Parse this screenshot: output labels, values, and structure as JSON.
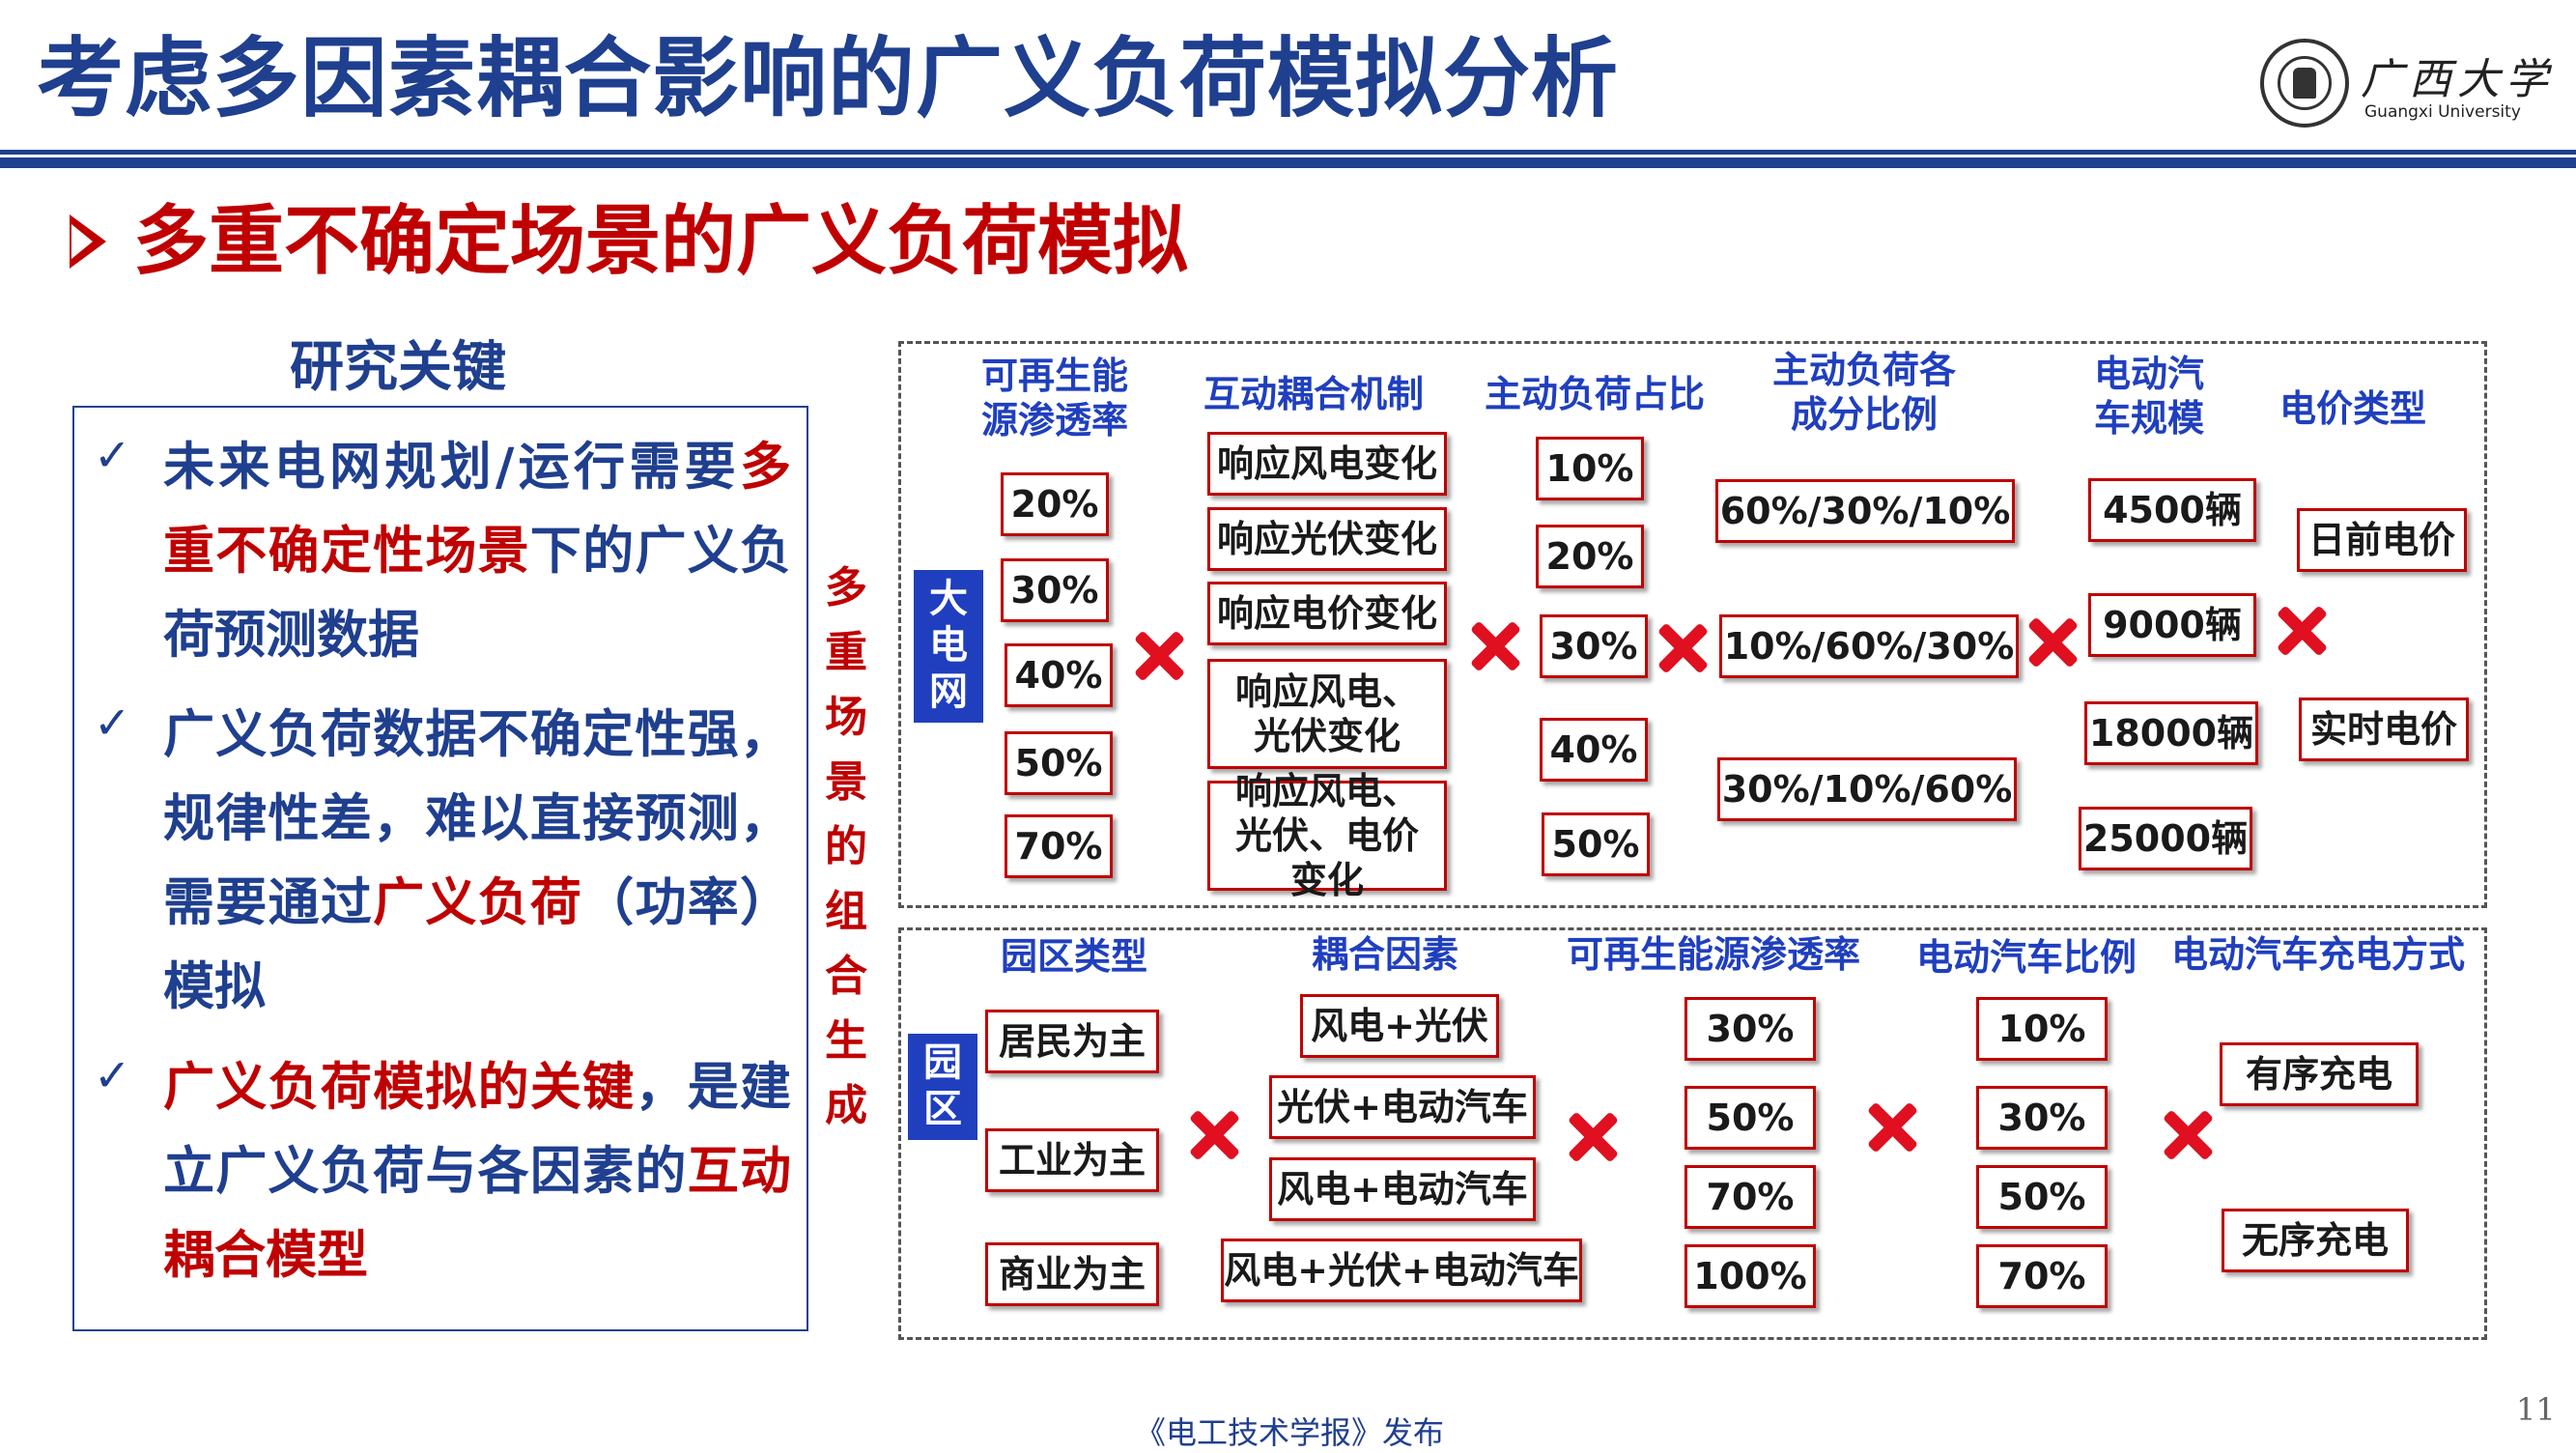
{
  "header": {
    "title": "考虑多因素耦合影响的广义负荷模拟分析",
    "logo_cn": "广西大学",
    "logo_en": "Guangxi University"
  },
  "subtitle": "多重不确定场景的广义负荷模拟",
  "research": {
    "heading": "研究关键",
    "bullets": [
      {
        "segments": [
          {
            "text": "未来电网规划/运行需要",
            "red": false
          },
          {
            "text": "多重不确定性场景",
            "red": true
          },
          {
            "text": "下的广义负荷预测数据",
            "red": false
          }
        ]
      },
      {
        "segments": [
          {
            "text": "广义负荷数据不确定性强，规律性差，难以直接预测，需要通过",
            "red": false
          },
          {
            "text": "广义负荷",
            "red": true
          },
          {
            "text": "（功率）模拟",
            "red": false
          }
        ]
      },
      {
        "segments": [
          {
            "text": "广义负荷模拟的关键",
            "red": true
          },
          {
            "text": "，是建立广义负荷与各因素的",
            "red": false
          },
          {
            "text": "互动耦合模型",
            "red": true
          }
        ]
      }
    ]
  },
  "vertical_label": "多重场景的组合生成",
  "grid": {
    "tag": "大电网",
    "headers": [
      "可再生能源渗透率",
      "互动耦合机制",
      "主动负荷占比",
      "主动负荷各成分比例",
      "电动汽车规模",
      "电价类型"
    ],
    "penetration": [
      "20%",
      "30%",
      "40%",
      "50%",
      "70%"
    ],
    "mechanisms": [
      "响应风电变化",
      "响应光伏变化",
      "响应电价变化",
      "响应风电、光伏变化",
      "响应风电、光伏、电价变化"
    ],
    "active_share": [
      "10%",
      "20%",
      "30%",
      "40%",
      "50%"
    ],
    "component_ratios": [
      "60%/30%/10%",
      "10%/60%/30%",
      "30%/10%/60%"
    ],
    "ev_scale": [
      "4500辆",
      "9000辆",
      "18000辆",
      "25000辆"
    ],
    "price_types": [
      "日前电价",
      "实时电价"
    ]
  },
  "park": {
    "tag": "园区",
    "headers": [
      "园区类型",
      "耦合因素",
      "可再生能源渗透率",
      "电动汽车比例",
      "电动汽车充电方式"
    ],
    "park_types": [
      "居民为主",
      "工业为主",
      "商业为主"
    ],
    "factors": [
      "风电+光伏",
      "光伏+电动汽车",
      "风电+电动汽车",
      "风电+光伏+电动汽车"
    ],
    "penetration": [
      "30%",
      "50%",
      "70%",
      "100%"
    ],
    "ev_ratio": [
      "10%",
      "30%",
      "50%",
      "70%"
    ],
    "charging": [
      "有序充电",
      "无序充电"
    ]
  },
  "footer": {
    "source": "《电工技术学报》发布",
    "page": "11"
  },
  "colors": {
    "navy": "#1f3f8f",
    "red": "#c00000",
    "tag_blue": "#1f3fbf",
    "cross_red": "#e01020"
  }
}
